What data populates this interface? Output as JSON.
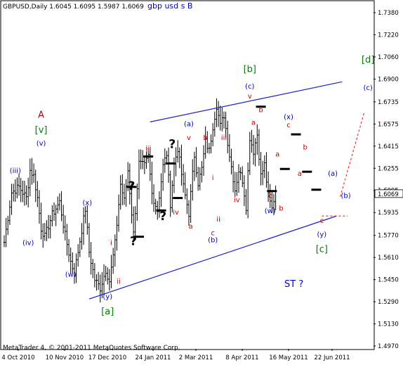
{
  "window": {
    "symbol_info": "GBPUSD,Daily  1.6045  1.6095  1.5987  1.6069",
    "chart_title": "gbp usd s B",
    "footer": "MetaTrader 4, © 2001-2011 MetaQuotes Software Corp.",
    "annotation_st": "ST ?"
  },
  "colors": {
    "bar": "#000000",
    "blue": "#0000c0",
    "red": "#c00000",
    "green": "#008000",
    "line": "#2020c8",
    "dotted": "#ff0000",
    "price_tag_bg": "#ffffff"
  },
  "chart_data": {
    "type": "ohlc",
    "symbol": "GBPUSD",
    "timeframe": "Daily",
    "last_bar": {
      "open": 1.6045,
      "high": 1.6095,
      "low": 1.5987,
      "close": 1.6069
    },
    "current_price_label": "1.6069",
    "y_ticks": [
      "1.7380",
      "1.7220",
      "1.7060",
      "1.6900",
      "1.6735",
      "1.6575",
      "1.6415",
      "1.6255",
      "1.6095",
      "1.5935",
      "1.5770",
      "1.5610",
      "1.5450",
      "1.5290",
      "1.5130",
      "1.4970"
    ],
    "x_ticks": [
      "4 Oct 2010",
      "10 Nov 2010",
      "17 Dec 2010",
      "24 Jan 2011",
      "2 Mar 2011",
      "8 Apr 2011",
      "16 May 2011",
      "22 Jun 2011"
    ],
    "ylim": [
      1.497,
      1.738
    ],
    "pivots": [
      [
        0,
        1.572
      ],
      [
        4,
        1.608
      ],
      [
        8,
        1.612
      ],
      [
        12,
        1.604
      ],
      [
        14,
        1.624
      ],
      [
        16,
        1.62
      ],
      [
        18,
        1.604
      ],
      [
        20,
        1.582
      ],
      [
        22,
        1.576
      ],
      [
        26,
        1.592
      ],
      [
        30,
        1.601
      ],
      [
        33,
        1.577
      ],
      [
        36,
        1.558
      ],
      [
        38,
        1.55
      ],
      [
        42,
        1.581
      ],
      [
        44,
        1.596
      ],
      [
        46,
        1.565
      ],
      [
        49,
        1.545
      ],
      [
        52,
        1.539
      ],
      [
        55,
        1.552
      ],
      [
        57,
        1.544
      ],
      [
        60,
        1.571
      ],
      [
        63,
        1.614
      ],
      [
        65,
        1.602
      ],
      [
        67,
        1.624
      ],
      [
        70,
        1.578
      ],
      [
        73,
        1.629
      ],
      [
        76,
        1.627
      ],
      [
        78,
        1.634
      ],
      [
        80,
        1.607
      ],
      [
        83,
        1.595
      ],
      [
        86,
        1.627
      ],
      [
        88,
        1.636
      ],
      [
        90,
        1.6
      ],
      [
        92,
        1.628
      ],
      [
        94,
        1.64
      ],
      [
        97,
        1.612
      ],
      [
        100,
        1.593
      ],
      [
        103,
        1.635
      ],
      [
        105,
        1.615
      ],
      [
        107,
        1.625
      ],
      [
        109,
        1.645
      ],
      [
        111,
        1.638
      ],
      [
        113,
        1.656
      ],
      [
        115,
        1.671
      ],
      [
        117,
        1.656
      ],
      [
        119,
        1.664
      ],
      [
        122,
        1.635
      ],
      [
        125,
        1.61
      ],
      [
        127,
        1.624
      ],
      [
        129,
        1.617
      ],
      [
        131,
        1.598
      ],
      [
        133,
        1.648
      ],
      [
        135,
        1.638
      ],
      [
        137,
        1.65
      ],
      [
        139,
        1.62
      ],
      [
        141,
        1.628
      ],
      [
        143,
        1.605
      ],
      [
        145,
        1.596
      ],
      [
        147,
        1.6095
      ]
    ],
    "annotations": [
      {
        "text": "(iii)",
        "x": 6,
        "y": 1.622,
        "color": "blue"
      },
      {
        "text": "(iv)",
        "x": 13,
        "y": 1.57,
        "color": "blue"
      },
      {
        "text": "(v)",
        "x": 20,
        "y": 1.642,
        "color": "blue"
      },
      {
        "text": "[v]",
        "x": 20,
        "y": 1.651,
        "color": "green"
      },
      {
        "text": "A",
        "x": 20,
        "y": 1.662,
        "color": "red"
      },
      {
        "text": "(w)",
        "x": 36,
        "y": 1.547,
        "color": "blue"
      },
      {
        "text": "(x)",
        "x": 45,
        "y": 1.599,
        "color": "blue"
      },
      {
        "text": "i",
        "x": 58,
        "y": 1.57,
        "color": "red"
      },
      {
        "text": "ii",
        "x": 62,
        "y": 1.542,
        "color": "red"
      },
      {
        "text": "(y)",
        "x": 56,
        "y": 1.531,
        "color": "blue"
      },
      {
        "text": "[a]",
        "x": 56,
        "y": 1.52,
        "color": "green"
      },
      {
        "text": "iii",
        "x": 78,
        "y": 1.638,
        "color": "red"
      },
      {
        "text": "iv",
        "x": 93,
        "y": 1.592,
        "color": "red"
      },
      {
        "text": "(a)",
        "x": 100,
        "y": 1.656,
        "color": "blue"
      },
      {
        "text": "v",
        "x": 100,
        "y": 1.646,
        "color": "red"
      },
      {
        "text": "a",
        "x": 101,
        "y": 1.582,
        "color": "red"
      },
      {
        "text": "b",
        "x": 109,
        "y": 1.646,
        "color": "red"
      },
      {
        "text": "i",
        "x": 113,
        "y": 1.617,
        "color": "red"
      },
      {
        "text": "c",
        "x": 113,
        "y": 1.577,
        "color": "red"
      },
      {
        "text": "(b)",
        "x": 113,
        "y": 1.572,
        "color": "blue"
      },
      {
        "text": "ii",
        "x": 116,
        "y": 1.587,
        "color": "red"
      },
      {
        "text": "iii",
        "x": 119,
        "y": 1.646,
        "color": "red"
      },
      {
        "text": "iv",
        "x": 126,
        "y": 1.601,
        "color": "red"
      },
      {
        "text": "[b]",
        "x": 133,
        "y": 1.695,
        "color": "green"
      },
      {
        "text": "(c)",
        "x": 133,
        "y": 1.683,
        "color": "blue"
      },
      {
        "text": "v",
        "x": 133,
        "y": 1.676,
        "color": "red"
      },
      {
        "text": "a",
        "x": 135,
        "y": 1.657,
        "color": "red"
      },
      {
        "text": "b",
        "x": 139,
        "y": 1.666,
        "color": "red"
      },
      {
        "text": "a",
        "x": 148,
        "y": 1.634,
        "color": "red"
      },
      {
        "text": "(w)",
        "x": 144,
        "y": 1.593,
        "color": "blue"
      },
      {
        "text": "c",
        "x": 144,
        "y": 1.604,
        "color": "red"
      },
      {
        "text": "b",
        "x": 150,
        "y": 1.595,
        "color": "red"
      },
      {
        "text": "(x)",
        "x": 154,
        "y": 1.661,
        "color": "blue"
      },
      {
        "text": "c",
        "x": 154,
        "y": 1.655,
        "color": "red"
      },
      {
        "text": "a",
        "x": 160,
        "y": 1.62,
        "color": "red"
      },
      {
        "text": "b",
        "x": 163,
        "y": 1.639,
        "color": "red"
      },
      {
        "text": "(a)",
        "x": 178,
        "y": 1.62,
        "color": "blue"
      },
      {
        "text": "c",
        "x": 172,
        "y": 1.586,
        "color": "red"
      },
      {
        "text": "(y)",
        "x": 172,
        "y": 1.576,
        "color": "blue"
      },
      {
        "text": "[c]",
        "x": 172,
        "y": 1.565,
        "color": "green"
      },
      {
        "text": "(b)",
        "x": 185,
        "y": 1.604,
        "color": "blue"
      },
      {
        "text": "(c)",
        "x": 197,
        "y": 1.682,
        "color": "blue"
      },
      {
        "text": "[d]",
        "x": 197,
        "y": 1.702,
        "color": "green"
      }
    ],
    "question_marks": [
      {
        "x": 69,
        "y": 1.61
      },
      {
        "x": 86,
        "y": 1.588
      },
      {
        "x": 91,
        "y": 1.64
      },
      {
        "x": 70,
        "y": 1.57
      }
    ],
    "markers": [
      {
        "x": 69,
        "y": 1.612
      },
      {
        "x": 73,
        "y": 1.576
      },
      {
        "x": 78,
        "y": 1.634
      },
      {
        "x": 85,
        "y": 1.595
      },
      {
        "x": 90,
        "y": 1.629
      },
      {
        "x": 94,
        "y": 1.604
      },
      {
        "x": 139,
        "y": 1.67
      },
      {
        "x": 145,
        "y": 1.609
      },
      {
        "x": 152,
        "y": 1.625
      },
      {
        "x": 158,
        "y": 1.65
      },
      {
        "x": 164,
        "y": 1.623
      },
      {
        "x": 169,
        "y": 1.61
      }
    ],
    "trendlines": [
      {
        "style": "solid",
        "from": [
          79,
          1.659
        ],
        "to": [
          183,
          1.688
        ]
      },
      {
        "style": "solid",
        "from": [
          46,
          1.531
        ],
        "to": [
          180,
          1.591
        ]
      },
      {
        "style": "dotted",
        "from": [
          182,
          1.605
        ],
        "to": [
          195,
          1.666
        ]
      },
      {
        "style": "dotted-h",
        "from": [
          172,
          1.591
        ],
        "to": [
          186,
          1.591
        ]
      }
    ]
  }
}
